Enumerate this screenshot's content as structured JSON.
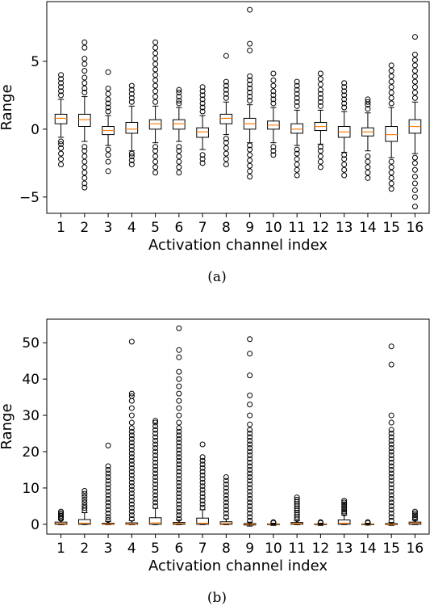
{
  "chart_data": [
    {
      "type": "boxplot",
      "caption": "(a)",
      "xlabel": "Activation channel index",
      "ylabel": "Range",
      "categories": [
        "1",
        "2",
        "3",
        "4",
        "5",
        "6",
        "7",
        "8",
        "9",
        "10",
        "11",
        "12",
        "13",
        "14",
        "15",
        "16"
      ],
      "ylim": [
        -6.2,
        9.4
      ],
      "yticks": [
        -5,
        0,
        5
      ],
      "ytick_labels": [
        "−5",
        "0",
        "5"
      ],
      "grid": false,
      "colors": {
        "box": "#000000",
        "median": "#ff7f0e",
        "flier": "#000000"
      },
      "boxes": [
        {
          "q1": 0.4,
          "median": 0.8,
          "q3": 1.1,
          "whislo": -0.6,
          "whishi": 2.2,
          "fliers": [
            -2.6,
            -2.2,
            -1.8,
            -1.4,
            -1.1,
            -0.9,
            2.5,
            2.8,
            3.1,
            3.4,
            3.7,
            4.0
          ]
        },
        {
          "q1": 0.2,
          "median": 0.7,
          "q3": 1.1,
          "whislo": -0.9,
          "whishi": 2.4,
          "fliers": [
            -4.3,
            -4.0,
            -3.6,
            -3.2,
            -2.8,
            -2.4,
            -2.0,
            -1.6,
            -1.3,
            2.7,
            3.0,
            3.4,
            3.8,
            4.3,
            4.8,
            5.2,
            6.0,
            6.4
          ]
        },
        {
          "q1": -0.4,
          "median": -0.1,
          "q3": 0.2,
          "whislo": -1.2,
          "whishi": 1.0,
          "fliers": [
            -3.1,
            -2.4,
            -1.9,
            -1.5,
            1.3,
            1.6,
            1.9,
            2.2,
            2.6,
            3.0,
            4.2
          ]
        },
        {
          "q1": -0.3,
          "median": 0.0,
          "q3": 0.5,
          "whislo": -1.6,
          "whishi": 1.7,
          "fliers": [
            -2.6,
            -2.3,
            -2.0,
            -1.8,
            2.0,
            2.3,
            2.6,
            2.9,
            3.2
          ]
        },
        {
          "q1": 0.0,
          "median": 0.4,
          "q3": 0.7,
          "whislo": -1.0,
          "whishi": 1.7,
          "fliers": [
            -3.2,
            -2.8,
            -2.4,
            -2.0,
            -1.6,
            -1.3,
            2.0,
            2.4,
            2.8,
            3.2,
            3.6,
            4.0,
            4.4,
            4.8,
            5.2,
            5.6,
            6.0,
            6.4
          ]
        },
        {
          "q1": 0.0,
          "median": 0.4,
          "q3": 0.7,
          "whislo": -0.9,
          "whishi": 1.6,
          "fliers": [
            -3.2,
            -2.8,
            -2.4,
            -2.0,
            -1.6,
            -1.3,
            1.9,
            2.1,
            2.4,
            2.7,
            2.9
          ]
        },
        {
          "q1": -0.6,
          "median": -0.2,
          "q3": 0.1,
          "whislo": -1.5,
          "whishi": 1.0,
          "fliers": [
            -2.5,
            -2.2,
            -1.9,
            1.3,
            1.6,
            1.9,
            2.2,
            2.5,
            2.8,
            3.1
          ]
        },
        {
          "q1": 0.4,
          "median": 0.8,
          "q3": 1.1,
          "whislo": -0.4,
          "whishi": 2.0,
          "fliers": [
            -2.6,
            -2.2,
            -1.8,
            -1.4,
            -1.0,
            -0.7,
            2.3,
            2.6,
            2.9,
            3.2,
            3.5,
            5.4
          ]
        },
        {
          "q1": 0.0,
          "median": 0.4,
          "q3": 0.8,
          "whislo": -1.0,
          "whishi": 1.8,
          "fliers": [
            -3.5,
            -3.1,
            -2.7,
            -2.3,
            -1.9,
            -1.5,
            -1.2,
            2.1,
            2.4,
            2.7,
            3.0,
            3.3,
            3.6,
            3.9,
            5.8,
            6.3,
            8.8
          ]
        },
        {
          "q1": 0.0,
          "median": 0.3,
          "q3": 0.6,
          "whislo": -1.0,
          "whishi": 1.6,
          "fliers": [
            -1.9,
            -1.6,
            -1.3,
            1.9,
            2.2,
            2.5,
            2.8,
            3.2,
            3.6,
            4.1
          ]
        },
        {
          "q1": -0.3,
          "median": 0.0,
          "q3": 0.4,
          "whislo": -1.2,
          "whishi": 1.4,
          "fliers": [
            -3.4,
            -3.0,
            -2.6,
            -2.2,
            -1.8,
            -1.5,
            1.7,
            2.0,
            2.3,
            2.6,
            2.9,
            3.2,
            3.5
          ]
        },
        {
          "q1": -0.1,
          "median": 0.2,
          "q3": 0.5,
          "whislo": -1.1,
          "whishi": 1.4,
          "fliers": [
            -2.8,
            -2.4,
            -2.0,
            -1.6,
            -1.3,
            1.7,
            2.0,
            2.3,
            2.6,
            2.9,
            3.3,
            3.7,
            4.1
          ]
        },
        {
          "q1": -0.6,
          "median": -0.2,
          "q3": 0.2,
          "whislo": -1.7,
          "whishi": 1.3,
          "fliers": [
            -3.4,
            -3.0,
            -2.6,
            -2.2,
            -1.9,
            1.6,
            1.9,
            2.2,
            2.5,
            2.8,
            3.1,
            3.4
          ]
        },
        {
          "q1": -0.5,
          "median": -0.2,
          "q3": 0.1,
          "whislo": -1.6,
          "whishi": 1.2,
          "fliers": [
            -3.6,
            -3.2,
            -2.8,
            -2.4,
            -2.0,
            1.5,
            1.8,
            2.0,
            2.2
          ]
        },
        {
          "q1": -0.9,
          "median": -0.4,
          "q3": 0.2,
          "whislo": -2.1,
          "whishi": 1.6,
          "fliers": [
            -4.4,
            -4.0,
            -3.6,
            -3.2,
            -2.8,
            -2.4,
            1.9,
            2.3,
            2.7,
            3.1,
            3.5,
            3.9,
            4.3,
            4.7
          ]
        },
        {
          "q1": -0.3,
          "median": 0.2,
          "q3": 0.7,
          "whislo": -1.8,
          "whishi": 2.0,
          "fliers": [
            -5.7,
            -5.0,
            -4.5,
            -4.0,
            -3.5,
            -3.0,
            -2.5,
            -2.1,
            2.3,
            2.7,
            3.1,
            3.5,
            3.9,
            4.3,
            4.7,
            5.1,
            5.5,
            6.8
          ]
        }
      ]
    },
    {
      "type": "boxplot",
      "caption": "(b)",
      "xlabel": "Activation channel index",
      "ylabel": "Range",
      "categories": [
        "1",
        "2",
        "3",
        "4",
        "5",
        "6",
        "7",
        "8",
        "9",
        "10",
        "11",
        "12",
        "13",
        "14",
        "15",
        "16"
      ],
      "ylim": [
        -2.7,
        56.5
      ],
      "yticks": [
        0,
        10,
        20,
        30,
        40,
        50
      ],
      "ytick_labels": [
        "0",
        "10",
        "20",
        "30",
        "40",
        "50"
      ],
      "grid": false,
      "colors": {
        "box": "#000000",
        "median": "#ff7f0e",
        "flier": "#000000"
      },
      "boxes": [
        {
          "q1": 0.0,
          "median": 0.2,
          "q3": 0.6,
          "whislo": -0.1,
          "whishi": 1.2,
          "fliers": [
            1.5,
            1.9,
            2.3,
            2.7,
            3.1,
            3.5
          ]
        },
        {
          "q1": 0.0,
          "median": 0.3,
          "q3": 1.3,
          "whislo": -0.1,
          "whishi": 3.2,
          "fliers": [
            3.8,
            4.5,
            5.2,
            6.0,
            6.8,
            7.6,
            8.4,
            9.2
          ]
        },
        {
          "q1": 0.0,
          "median": 0.1,
          "q3": 0.3,
          "whislo": -0.1,
          "whishi": 0.8,
          "fliers": [
            1.2,
            2.0,
            3.0,
            4.0,
            5.0,
            6.0,
            7.0,
            8.0,
            9.0,
            10.0,
            11.0,
            12.0,
            13.0,
            14.0,
            15.0,
            16.0,
            21.7
          ]
        },
        {
          "q1": 0.0,
          "median": 0.1,
          "q3": 0.4,
          "whislo": -0.1,
          "whishi": 1.0,
          "fliers": [
            1.5,
            2.5,
            3.5,
            4.5,
            5.5,
            6.5,
            7.5,
            8.5,
            9.5,
            10.5,
            11.5,
            12.5,
            13.5,
            14.5,
            15.5,
            16.5,
            17.5,
            18.5,
            19.5,
            20.5,
            21.5,
            22.5,
            23.5,
            24.5,
            25.5,
            26.5,
            28.0,
            30.0,
            32.0,
            34.0,
            35.3,
            36.0,
            50.3
          ]
        },
        {
          "q1": 0.0,
          "median": 0.4,
          "q3": 1.8,
          "whislo": -0.1,
          "whishi": 4.4,
          "fliers": [
            5.0,
            6.0,
            7.0,
            8.0,
            9.0,
            10.0,
            11.0,
            12.0,
            13.0,
            14.0,
            15.0,
            16.0,
            17.0,
            18.0,
            19.0,
            20.0,
            21.0,
            22.0,
            23.0,
            24.0,
            25.0,
            26.0,
            27.0,
            28.0,
            28.5
          ]
        },
        {
          "q1": 0.0,
          "median": 0.2,
          "q3": 0.5,
          "whislo": -0.1,
          "whishi": 1.2,
          "fliers": [
            1.5,
            2.5,
            3.5,
            4.5,
            5.5,
            6.5,
            7.5,
            8.5,
            9.5,
            10.5,
            11.5,
            12.5,
            13.5,
            14.5,
            15.5,
            16.5,
            17.5,
            18.5,
            19.5,
            20.5,
            21.5,
            22.5,
            23.5,
            24.5,
            25.5,
            26.5,
            28.0,
            30.0,
            32.0,
            34.0,
            36.0,
            38.0,
            40.0,
            42.0,
            46.0,
            48.0,
            54.0
          ]
        },
        {
          "q1": 0.0,
          "median": 0.3,
          "q3": 1.7,
          "whislo": -0.1,
          "whishi": 4.0,
          "fliers": [
            4.6,
            5.5,
            6.5,
            7.5,
            8.5,
            9.5,
            10.5,
            11.5,
            12.5,
            13.5,
            14.5,
            15.5,
            16.5,
            17.5,
            18.5,
            22.0
          ]
        },
        {
          "q1": 0.0,
          "median": 0.2,
          "q3": 0.7,
          "whislo": -0.1,
          "whishi": 1.5,
          "fliers": [
            2.0,
            3.0,
            4.0,
            5.0,
            6.0,
            7.0,
            8.0,
            9.0,
            10.0,
            11.0,
            12.0,
            13.0
          ]
        },
        {
          "q1": -0.2,
          "median": 0.0,
          "q3": 0.2,
          "whislo": -0.5,
          "whishi": 0.6,
          "fliers": [
            1.0,
            2.0,
            3.0,
            4.0,
            5.0,
            6.0,
            7.0,
            8.0,
            9.0,
            10.0,
            11.0,
            12.0,
            13.0,
            14.0,
            15.0,
            16.0,
            17.0,
            18.0,
            19.0,
            20.0,
            21.0,
            22.0,
            23.0,
            24.0,
            25.0,
            26.0,
            27.5,
            30.0,
            33.0,
            35.5,
            41.0,
            47.0,
            51.0
          ]
        },
        {
          "q1": -0.1,
          "median": 0.0,
          "q3": 0.1,
          "whislo": -0.3,
          "whishi": 0.3,
          "fliers": [
            0.4,
            0.6
          ]
        },
        {
          "q1": 0.0,
          "median": 0.2,
          "q3": 0.5,
          "whislo": -0.1,
          "whishi": 1.0,
          "fliers": [
            1.4,
            2.0,
            2.6,
            3.2,
            3.8,
            4.4,
            5.0,
            5.6,
            6.2,
            6.8,
            7.4
          ]
        },
        {
          "q1": -0.1,
          "median": 0.0,
          "q3": 0.1,
          "whislo": -0.3,
          "whishi": 0.3,
          "fliers": [
            0.4,
            0.6
          ]
        },
        {
          "q1": 0.0,
          "median": 0.3,
          "q3": 1.2,
          "whislo": -0.1,
          "whishi": 2.5,
          "fliers": [
            3.0,
            3.5,
            4.0,
            4.5,
            5.0,
            5.5,
            6.0,
            6.5
          ]
        },
        {
          "q1": -0.1,
          "median": 0.0,
          "q3": 0.1,
          "whislo": -0.2,
          "whishi": 0.3,
          "fliers": [
            0.4,
            0.6
          ]
        },
        {
          "q1": -0.1,
          "median": 0.0,
          "q3": 0.2,
          "whislo": -0.3,
          "whishi": 0.5,
          "fliers": [
            1.0,
            2.0,
            3.0,
            4.0,
            5.0,
            6.0,
            7.0,
            8.0,
            9.0,
            10.0,
            11.0,
            12.0,
            13.0,
            14.0,
            15.0,
            16.0,
            17.0,
            18.0,
            19.0,
            20.0,
            21.0,
            22.0,
            23.0,
            24.0,
            25.0,
            26.0,
            28.0,
            30.0,
            44.0,
            49.0
          ]
        },
        {
          "q1": 0.0,
          "median": 0.3,
          "q3": 0.6,
          "whislo": -0.1,
          "whishi": 1.1,
          "fliers": [
            1.5,
            2.0,
            2.5,
            3.0,
            3.5
          ]
        }
      ]
    }
  ]
}
